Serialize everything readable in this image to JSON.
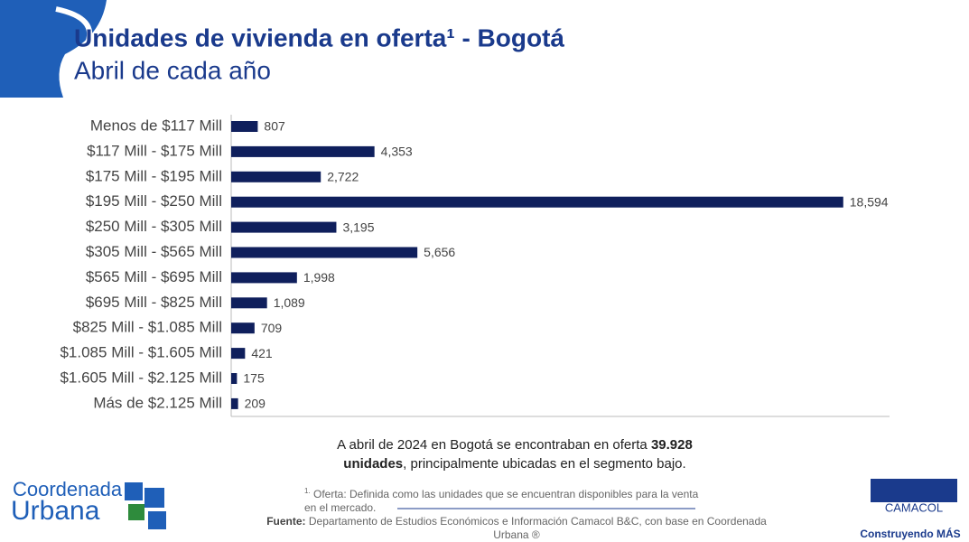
{
  "chart_data": {
    "type": "bar",
    "orientation": "horizontal",
    "title": "Unidades de vivienda en oferta¹ - Bogotá",
    "subtitle": "Abril de cada año",
    "categories": [
      "Menos de $117 Mill",
      "$117 Mill - $175 Mill",
      "$175 Mill - $195 Mill",
      "$195 Mill - $250 Mill",
      "$250 Mill - $305 Mill",
      "$305 Mill - $565 Mill",
      "$565 Mill - $695 Mill",
      "$695 Mill - $825 Mill",
      "$825 Mill - $1.085 Mill",
      "$1.085 Mill - $1.605 Mill",
      "$1.605 Mill - $2.125 Mill",
      "Más de $2.125 Mill"
    ],
    "values": [
      807,
      4353,
      2722,
      18594,
      3195,
      5656,
      1998,
      1089,
      709,
      421,
      175,
      209
    ],
    "value_labels": [
      "807",
      "4,353",
      "2,722",
      "18,594",
      "3,195",
      "5,656",
      "1,998",
      "1,089",
      "709",
      "421",
      "175",
      "209"
    ],
    "color": "#0f1f5c",
    "xlim": [
      0,
      20000
    ]
  },
  "summary": {
    "line1": "A abril de 2024 en Bogotá se encontraban en oferta ",
    "bold1": "39.928",
    "bold2": "unidades",
    "line2": ", principalmente ubicadas en el segmento bajo."
  },
  "footnote": {
    "marker": "1.",
    "lines": [
      " Oferta: Definida como las unidades que se encuentran disponibles para la venta",
      "en el mercado."
    ]
  },
  "source": {
    "label": "Fuente:",
    "lines": [
      " Departamento de Estudios Económicos e Información Camacol B&C, con base en Coordenada",
      "Urbana ®"
    ]
  },
  "logos": {
    "left": [
      "Coordenada",
      "Urbana"
    ],
    "right": [
      "CAMACOL",
      "Construyendo MÁS"
    ]
  }
}
